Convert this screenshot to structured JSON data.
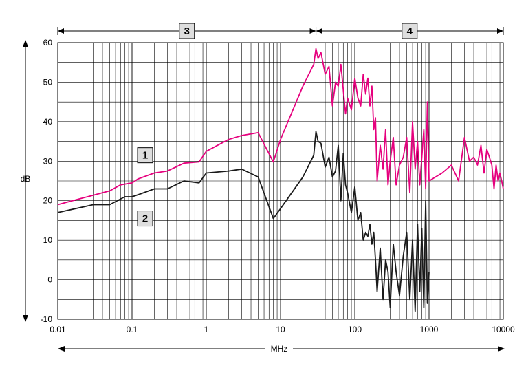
{
  "chart_data": {
    "type": "line",
    "x_scale": "log",
    "xlim": [
      0.01,
      10000
    ],
    "ylim": [
      -10,
      60
    ],
    "xlabel": "MHz",
    "ylabel": "dB",
    "grid": true,
    "x_tick_labels": [
      "0.01",
      "0.1",
      "1",
      "10",
      "100",
      "1000",
      "10000"
    ],
    "y_tick_labels": [
      "-10",
      "0",
      "10",
      "20",
      "30",
      "40",
      "50",
      "60"
    ],
    "regions": [
      {
        "label": "3",
        "x_range": [
          0.01,
          30
        ]
      },
      {
        "label": "4",
        "x_range": [
          30,
          10000
        ]
      }
    ],
    "colors": {
      "series_1": "#e6007e",
      "series_2": "#1a1a1a",
      "grid": "#000000"
    },
    "series": [
      {
        "name": "1",
        "x": [
          0.01,
          0.02,
          0.05,
          0.07,
          0.1,
          0.12,
          0.2,
          0.3,
          0.5,
          0.8,
          1,
          2,
          3,
          5,
          8,
          10,
          20,
          28,
          30,
          32,
          35,
          40,
          45,
          50,
          55,
          60,
          65,
          70,
          75,
          80,
          90,
          100,
          110,
          120,
          130,
          140,
          150,
          160,
          170,
          180,
          190,
          200,
          220,
          240,
          260,
          280,
          300,
          330,
          360,
          400,
          450,
          500,
          550,
          600,
          650,
          700,
          750,
          800,
          850,
          900,
          950,
          1000,
          1500,
          2000,
          2500,
          3000,
          3500,
          4000,
          4500,
          5000,
          5500,
          6000,
          6500,
          7000,
          7500,
          8000,
          8500,
          9000,
          9500,
          10000
        ],
        "y": [
          19,
          20.5,
          22.5,
          24,
          24.5,
          25.5,
          27,
          27.5,
          29.5,
          29.8,
          32.5,
          35.5,
          36.5,
          37.2,
          29.8,
          35.5,
          49,
          54.5,
          58.5,
          56,
          57.5,
          52,
          54,
          44,
          50,
          49,
          54.5,
          48,
          42,
          46,
          43,
          51,
          46,
          44,
          52,
          47,
          51,
          44,
          49,
          38,
          41,
          25,
          34,
          28,
          38,
          24,
          30,
          36,
          24,
          29,
          31,
          36,
          22,
          40,
          28,
          35,
          24,
          31,
          38,
          23,
          45,
          25,
          27,
          29,
          25,
          36,
          30,
          31,
          29,
          34,
          27,
          33,
          31,
          29,
          23,
          29,
          25,
          27,
          25,
          23
        ]
      },
      {
        "name": "2",
        "x": [
          0.01,
          0.03,
          0.05,
          0.08,
          0.1,
          0.12,
          0.2,
          0.3,
          0.5,
          0.8,
          1,
          2,
          3,
          5,
          8,
          10,
          20,
          28,
          30,
          32,
          35,
          40,
          45,
          50,
          55,
          60,
          65,
          70,
          75,
          80,
          90,
          100,
          110,
          120,
          130,
          140,
          150,
          160,
          170,
          180,
          190,
          200,
          220,
          240,
          260,
          280,
          300,
          330,
          360,
          400,
          450,
          500,
          550,
          600,
          650,
          700,
          750,
          800,
          850,
          900,
          950,
          1000
        ],
        "y": [
          17,
          19,
          19,
          21,
          21,
          21.5,
          23,
          23,
          25,
          24.5,
          27,
          27.5,
          28,
          26,
          15.5,
          18,
          26,
          31.5,
          37.5,
          35,
          34.5,
          28.5,
          31,
          26,
          27.5,
          34,
          20,
          32,
          24,
          22,
          17,
          23.5,
          15,
          17,
          10,
          12,
          11,
          14,
          9,
          12,
          5,
          -3,
          8,
          -5,
          5,
          2,
          -7,
          9,
          2,
          -4,
          6,
          12,
          -5,
          10,
          -8,
          14,
          -3,
          13,
          -7,
          20,
          -6,
          2
        ]
      }
    ]
  }
}
